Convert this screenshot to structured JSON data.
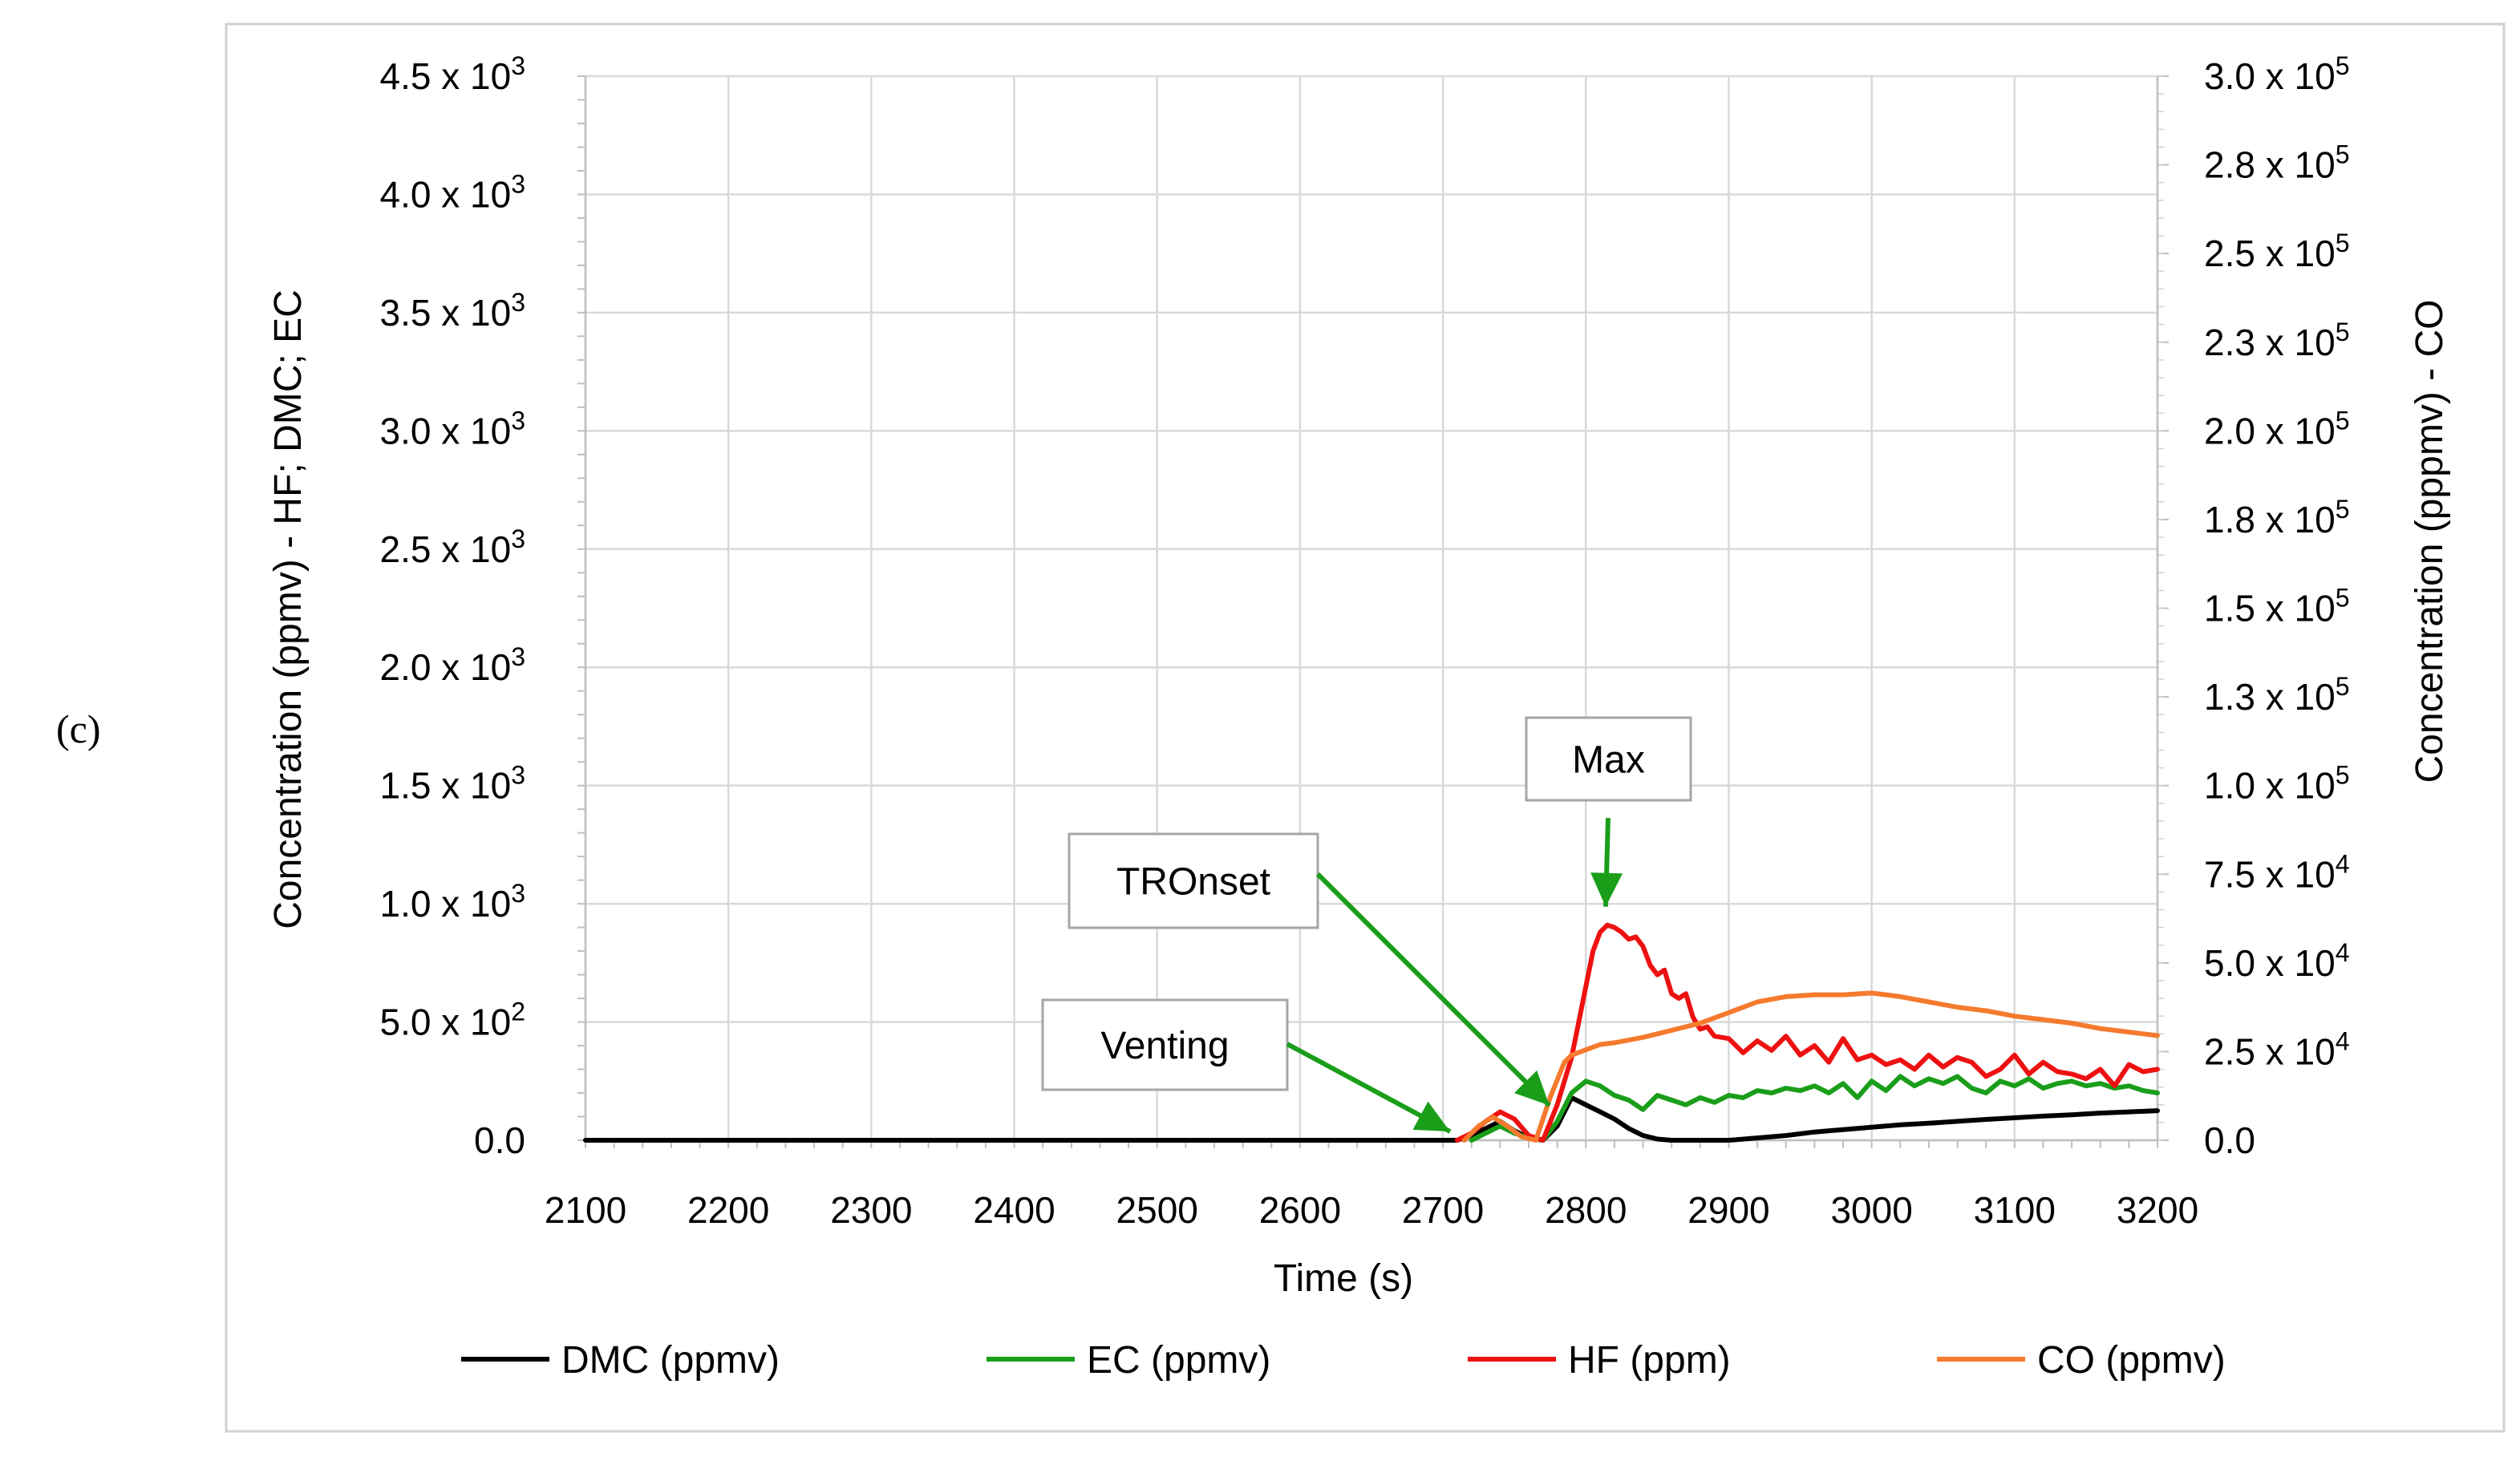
{
  "panel_label": "(c)",
  "chart_data": {
    "type": "line",
    "xlabel": "Time (s)",
    "ylabel_left": "Concentration (ppmv) - HF; DMC; EC",
    "ylabel_right": "Concentration (pppmv) - CO",
    "xlim": [
      2100,
      3200
    ],
    "ylim_left": [
      0,
      4500
    ],
    "ylim_right": [
      0,
      300000
    ],
    "grid": true,
    "legend_position": "bottom",
    "x_ticks": [
      2100,
      2200,
      2300,
      2400,
      2500,
      2600,
      2700,
      2800,
      2900,
      3000,
      3100,
      3200
    ],
    "x_tick_labels": [
      "2100",
      "2200",
      "2300",
      "2400",
      "2500",
      "2600",
      "2700",
      "2800",
      "2900",
      "3000",
      "3100",
      "3200"
    ],
    "y_left_ticks": [
      {
        "value": 0,
        "mant": "0.0",
        "exp": ""
      },
      {
        "value": 500,
        "mant": "5.0 x 10",
        "exp": "2"
      },
      {
        "value": 1000,
        "mant": "1.0 x 10",
        "exp": "3"
      },
      {
        "value": 1500,
        "mant": "1.5 x 10",
        "exp": "3"
      },
      {
        "value": 2000,
        "mant": "2.0 x 10",
        "exp": "3"
      },
      {
        "value": 2500,
        "mant": "2.5 x 10",
        "exp": "3"
      },
      {
        "value": 3000,
        "mant": "3.0 x 10",
        "exp": "3"
      },
      {
        "value": 3500,
        "mant": "3.5 x 10",
        "exp": "3"
      },
      {
        "value": 4000,
        "mant": "4.0 x 10",
        "exp": "3"
      },
      {
        "value": 4500,
        "mant": "4.5 x 10",
        "exp": "3"
      }
    ],
    "y_right_ticks": [
      {
        "value": 0,
        "mant": "0.0",
        "exp": ""
      },
      {
        "value": 25000,
        "mant": "2.5 x 10",
        "exp": "4"
      },
      {
        "value": 50000,
        "mant": "5.0 x 10",
        "exp": "4"
      },
      {
        "value": 75000,
        "mant": "7.5 x 10",
        "exp": "4"
      },
      {
        "value": 100000,
        "mant": "1.0 x 10",
        "exp": "5"
      },
      {
        "value": 125000,
        "mant": "1.3 x 10",
        "exp": "5"
      },
      {
        "value": 150000,
        "mant": "1.5 x 10",
        "exp": "5"
      },
      {
        "value": 175000,
        "mant": "1.8 x 10",
        "exp": "5"
      },
      {
        "value": 200000,
        "mant": "2.0 x 10",
        "exp": "5"
      },
      {
        "value": 225000,
        "mant": "2.3 x 10",
        "exp": "5"
      },
      {
        "value": 250000,
        "mant": "2.5 x 10",
        "exp": "5"
      },
      {
        "value": 275000,
        "mant": "2.8 x 10",
        "exp": "5"
      },
      {
        "value": 300000,
        "mant": "3.0 x 10",
        "exp": "5"
      }
    ],
    "series": [
      {
        "name": "DMC (ppmv)",
        "color": "#000000",
        "axis": "left",
        "x": [
          2100,
          2700,
          2710,
          2720,
          2730,
          2740,
          2750,
          2760,
          2770,
          2780,
          2790,
          2800,
          2810,
          2820,
          2830,
          2840,
          2850,
          2860,
          2870,
          2880,
          2900,
          2920,
          2940,
          2960,
          2980,
          3000,
          3020,
          3040,
          3060,
          3080,
          3100,
          3120,
          3140,
          3160,
          3180,
          3200
        ],
        "y": [
          0,
          0,
          0,
          20,
          50,
          80,
          40,
          10,
          0,
          60,
          180,
          150,
          120,
          90,
          50,
          20,
          5,
          0,
          0,
          0,
          0,
          10,
          20,
          35,
          45,
          55,
          65,
          72,
          80,
          88,
          95,
          102,
          108,
          115,
          120,
          125
        ]
      },
      {
        "name": "EC (ppmv)",
        "color": "#1a9e1a",
        "axis": "left",
        "x": [
          2720,
          2730,
          2740,
          2750,
          2760,
          2770,
          2780,
          2790,
          2800,
          2810,
          2820,
          2830,
          2840,
          2850,
          2860,
          2870,
          2880,
          2890,
          2900,
          2910,
          2920,
          2930,
          2940,
          2950,
          2960,
          2970,
          2980,
          2990,
          3000,
          3010,
          3020,
          3030,
          3040,
          3050,
          3060,
          3070,
          3080,
          3090,
          3100,
          3110,
          3120,
          3130,
          3140,
          3150,
          3160,
          3170,
          3180,
          3190,
          3200
        ],
        "y": [
          0,
          30,
          60,
          30,
          10,
          0,
          80,
          200,
          250,
          230,
          190,
          170,
          130,
          190,
          170,
          150,
          180,
          160,
          190,
          180,
          210,
          200,
          220,
          210,
          230,
          200,
          240,
          180,
          250,
          210,
          270,
          230,
          260,
          240,
          270,
          220,
          200,
          250,
          230,
          260,
          220,
          240,
          250,
          230,
          240,
          220,
          230,
          210,
          200
        ]
      },
      {
        "name": "HF (ppm)",
        "color": "#ee1111",
        "axis": "left",
        "x": [
          2710,
          2720,
          2730,
          2740,
          2750,
          2760,
          2770,
          2780,
          2790,
          2800,
          2805,
          2810,
          2815,
          2820,
          2825,
          2830,
          2835,
          2840,
          2845,
          2850,
          2855,
          2860,
          2865,
          2870,
          2875,
          2880,
          2885,
          2890,
          2900,
          2910,
          2920,
          2930,
          2940,
          2950,
          2960,
          2970,
          2980,
          2990,
          3000,
          3010,
          3020,
          3030,
          3040,
          3050,
          3060,
          3070,
          3080,
          3090,
          3100,
          3110,
          3120,
          3130,
          3140,
          3150,
          3160,
          3170,
          3180,
          3190,
          3200
        ],
        "y": [
          0,
          30,
          80,
          120,
          90,
          20,
          0,
          150,
          350,
          650,
          800,
          880,
          910,
          900,
          880,
          850,
          860,
          820,
          740,
          700,
          720,
          620,
          600,
          620,
          520,
          470,
          480,
          440,
          430,
          370,
          420,
          380,
          440,
          360,
          400,
          330,
          430,
          340,
          360,
          320,
          340,
          300,
          360,
          310,
          350,
          330,
          270,
          300,
          360,
          280,
          330,
          290,
          280,
          260,
          300,
          230,
          320,
          290,
          300
        ]
      },
      {
        "name": "CO (ppmv)",
        "color": "#f57a2e",
        "axis": "right",
        "x": [
          2715,
          2725,
          2735,
          2745,
          2755,
          2765,
          2775,
          2785,
          2790,
          2800,
          2810,
          2820,
          2840,
          2860,
          2880,
          2900,
          2920,
          2940,
          2960,
          2980,
          3000,
          3020,
          3040,
          3060,
          3080,
          3100,
          3120,
          3140,
          3160,
          3180,
          3200
        ],
        "y": [
          0,
          4000,
          6500,
          4000,
          1000,
          0,
          12000,
          22000,
          24000,
          25500,
          27000,
          27500,
          29000,
          31000,
          33000,
          36000,
          39000,
          40500,
          41000,
          41000,
          41500,
          40500,
          39000,
          37500,
          36500,
          35000,
          34000,
          33000,
          31500,
          30500,
          29500
        ]
      }
    ],
    "annotations": [
      {
        "name": "venting",
        "text": "Venting",
        "target_x": 2705,
        "target_y": 30,
        "box_x": 2430,
        "box_y": 0.0
      },
      {
        "name": "tronset",
        "text": "TROnset",
        "target_x": 2770,
        "target_y": 130
      },
      {
        "name": "max",
        "text": "Max",
        "target_x": 2815,
        "target_y": 920
      }
    ]
  }
}
